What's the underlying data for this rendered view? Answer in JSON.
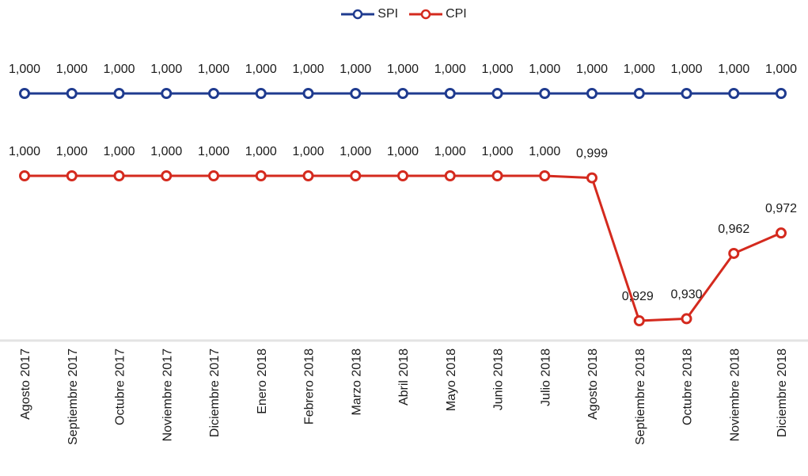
{
  "chart_data": {
    "type": "line",
    "title": "",
    "xlabel": "",
    "ylabel": "",
    "legend_position": "top-center",
    "grid": false,
    "categories": [
      "Agosto 2017",
      "Septiembre 2017",
      "Octubre 2017",
      "Noviembre 2017",
      "Diciembre 2017",
      "Enero 2018",
      "Febrero 2018",
      "Marzo 2018",
      "Abril 2018",
      "Mayo 2018",
      "Junio 2018",
      "Julio 2018",
      "Agosto 2018",
      "Septiembre 2018",
      "Octubre 2018",
      "Noviembre 2018",
      "Diciembre 2018"
    ],
    "series": [
      {
        "name": "SPI",
        "color": "#1f3b8f",
        "values": [
          1.0,
          1.0,
          1.0,
          1.0,
          1.0,
          1.0,
          1.0,
          1.0,
          1.0,
          1.0,
          1.0,
          1.0,
          1.0,
          1.0,
          1.0,
          1.0,
          1.0
        ],
        "labels": [
          "1,000",
          "1,000",
          "1,000",
          "1,000",
          "1,000",
          "1,000",
          "1,000",
          "1,000",
          "1,000",
          "1,000",
          "1,000",
          "1,000",
          "1,000",
          "1,000",
          "1,000",
          "1,000",
          "1,000"
        ]
      },
      {
        "name": "CPI",
        "color": "#d42a1e",
        "values": [
          1.0,
          1.0,
          1.0,
          1.0,
          1.0,
          1.0,
          1.0,
          1.0,
          1.0,
          1.0,
          1.0,
          1.0,
          0.999,
          0.929,
          0.93,
          0.962,
          0.972
        ],
        "labels": [
          "1,000",
          "1,000",
          "1,000",
          "1,000",
          "1,000",
          "1,000",
          "1,000",
          "1,000",
          "1,000",
          "1,000",
          "1,000",
          "1,000",
          "0,999",
          "0,929",
          "0,930",
          "0,962",
          "0,972"
        ]
      }
    ]
  }
}
